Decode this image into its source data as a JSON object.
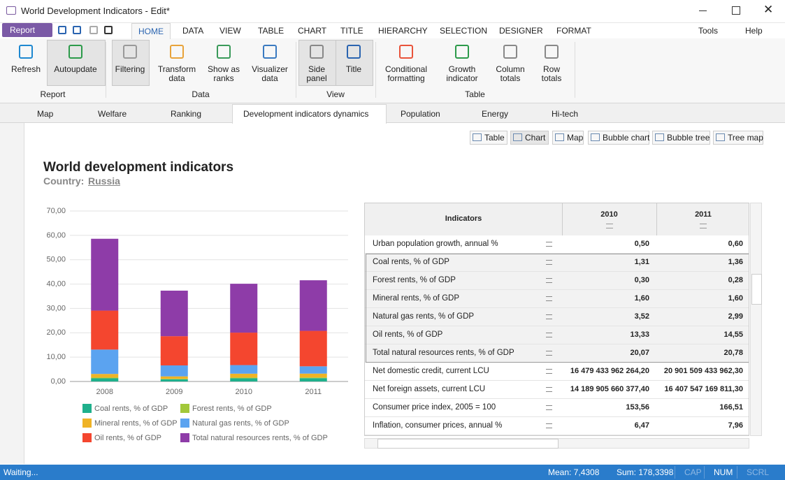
{
  "window": {
    "title": "World Development Indicators - Edit*"
  },
  "menu": {
    "report": "Report",
    "tabs": [
      "HOME",
      "DATA",
      "VIEW",
      "TABLE",
      "CHART",
      "TITLE",
      "HIERARCHY",
      "SELECTION",
      "DESIGNER",
      "FORMAT"
    ],
    "tools": "Tools",
    "help": "Help"
  },
  "ribbon": {
    "groups": [
      {
        "label": "Report",
        "buttons": [
          "Refresh",
          "Autoupdate"
        ]
      },
      {
        "label": "Data",
        "buttons": [
          "Filtering",
          "Transform data",
          "Show as ranks",
          "Visualizer data"
        ]
      },
      {
        "label": "View",
        "buttons": [
          "Side panel",
          "Title"
        ]
      },
      {
        "label": "Table",
        "buttons": [
          "Conditional formatting",
          "Growth indicator",
          "Column totals",
          "Row totals"
        ]
      }
    ]
  },
  "doc_tabs": [
    "Map",
    "Welfare",
    "Ranking",
    "Development indicators dynamics",
    "Population",
    "Energy",
    "Hi-tech"
  ],
  "view_buttons": [
    "Table",
    "Chart",
    "Map",
    "Bubble chart",
    "Bubble tree",
    "Tree map"
  ],
  "report": {
    "title": "World development indicators",
    "country_label": "Country:",
    "country": "Russia"
  },
  "chart_data": {
    "type": "stacked_bar",
    "categories": [
      "2008",
      "2009",
      "2010",
      "2011"
    ],
    "series": [
      {
        "name": "Coal rents, % of GDP",
        "color": "#1fb08c",
        "values": [
          1.3,
          0.9,
          1.31,
          1.36
        ]
      },
      {
        "name": "Forest rents, % of GDP",
        "color": "#a2c83a",
        "values": [
          0.3,
          0.2,
          0.3,
          0.28
        ]
      },
      {
        "name": "Mineral rents, % of GDP",
        "color": "#efb326",
        "values": [
          1.5,
          1.0,
          1.6,
          1.6
        ]
      },
      {
        "name": "Natural gas rents, % of GDP",
        "color": "#5ba3f0",
        "values": [
          10.0,
          4.5,
          3.52,
          2.99
        ]
      },
      {
        "name": "Oil rents, % of GDP",
        "color": "#f4462f",
        "values": [
          16.0,
          12.0,
          13.33,
          14.55
        ]
      },
      {
        "name": "Total natural resources rents, % of GDP",
        "color": "#8e3ca8",
        "values": [
          29.5,
          18.7,
          20.07,
          20.78
        ]
      }
    ],
    "ylim": [
      0,
      70
    ],
    "yticks": [
      {
        "value": 0,
        "label": "0,00"
      },
      {
        "value": 10,
        "label": "10,00"
      },
      {
        "value": 20,
        "label": "20,00"
      },
      {
        "value": 30,
        "label": "30,00"
      },
      {
        "value": 40,
        "label": "40,00"
      },
      {
        "value": 50,
        "label": "50,00"
      },
      {
        "value": 60,
        "label": "60,00"
      },
      {
        "value": 70,
        "label": "70,00"
      }
    ],
    "grid": true
  },
  "table": {
    "header": [
      "Indicators",
      "2010",
      "2011"
    ],
    "rows": [
      [
        "Urban population growth, annual %",
        "0,50",
        "0,60"
      ],
      [
        "Coal rents, % of GDP",
        "1,31",
        "1,36"
      ],
      [
        "Forest rents, % of GDP",
        "0,30",
        "0,28"
      ],
      [
        "Mineral rents, % of GDP",
        "1,60",
        "1,60"
      ],
      [
        "Natural gas rents, % of GDP",
        "3,52",
        "2,99"
      ],
      [
        "Oil rents, % of GDP",
        "13,33",
        "14,55"
      ],
      [
        "Total natural resources rents, % of GDP",
        "20,07",
        "20,78"
      ],
      [
        "Net domestic credit, current LCU",
        "16 479 433 962 264,20",
        "20 901 509 433 962,30"
      ],
      [
        "Net foreign assets, current LCU",
        "14 189 905 660 377,40",
        "16 407 547 169 811,30"
      ],
      [
        "Consumer price index, 2005 = 100",
        "153,56",
        "166,51"
      ],
      [
        "Inflation, consumer prices, annual %",
        "6,47",
        "7,96"
      ]
    ]
  },
  "status": {
    "left": "Waiting...",
    "mean": "Mean: 7,4308",
    "sum": "Sum: 178,3398",
    "indicators": [
      "CAP",
      "NUM",
      "SCRL"
    ]
  }
}
